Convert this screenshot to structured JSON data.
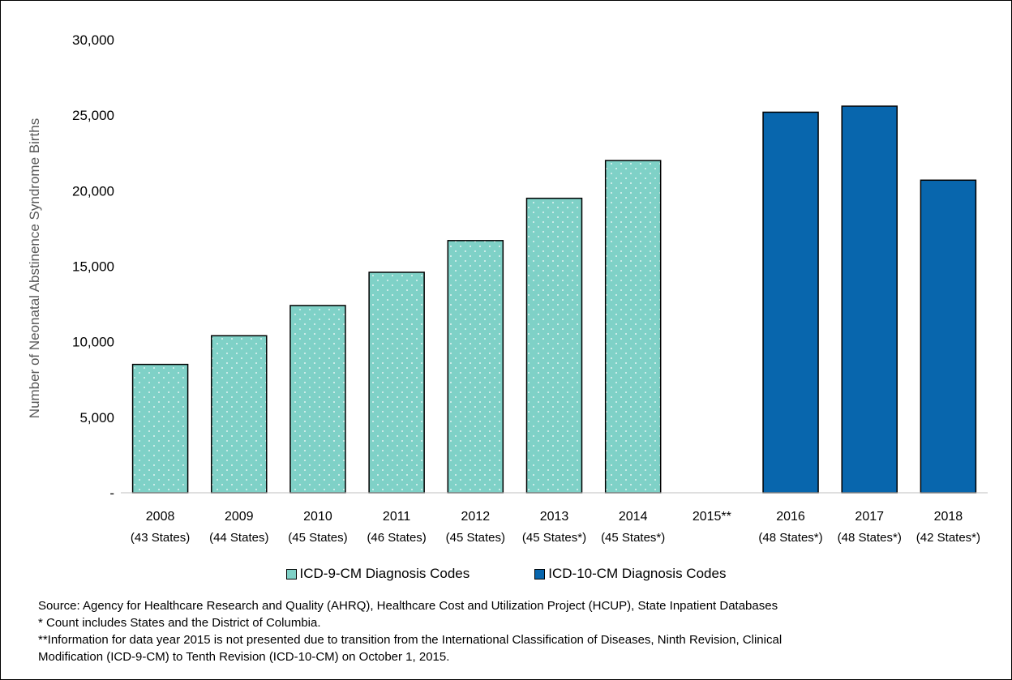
{
  "chart_data": {
    "type": "bar",
    "ylabel": "Number  of Neonatal Abstinence Syndrome Births",
    "ylim": [
      0,
      30000
    ],
    "yticks": [
      {
        "value": 0,
        "label": "-"
      },
      {
        "value": 5000,
        "label": "5,000"
      },
      {
        "value": 10000,
        "label": "10,000"
      },
      {
        "value": 15000,
        "label": "15,000"
      },
      {
        "value": 20000,
        "label": "20,000"
      },
      {
        "value": 25000,
        "label": "25,000"
      },
      {
        "value": 30000,
        "label": "30,000"
      }
    ],
    "categories": [
      {
        "year": "2008",
        "states": "(43 States)"
      },
      {
        "year": "2009",
        "states": "(44 States)"
      },
      {
        "year": "2010",
        "states": "(45 States)"
      },
      {
        "year": "2011",
        "states": "(46 States)"
      },
      {
        "year": "2012",
        "states": "(45 States)"
      },
      {
        "year": "2013",
        "states": "(45 States*)"
      },
      {
        "year": "2014",
        "states": "(45 States*)"
      },
      {
        "year": "2015**",
        "states": ""
      },
      {
        "year": "2016",
        "states": "(48 States*)"
      },
      {
        "year": "2017",
        "states": "(48 States*)"
      },
      {
        "year": "2018",
        "states": "(42 States*)"
      }
    ],
    "series": [
      {
        "name": "ICD-9-CM Diagnosis Codes",
        "color": "#7fd1c7",
        "pattern": "dotted",
        "values": [
          8500,
          10400,
          12400,
          14600,
          16700,
          19500,
          22000,
          null,
          null,
          null,
          null
        ]
      },
      {
        "name": "ICD-10-CM Diagnosis Codes",
        "color": "#0866ad",
        "pattern": "solid",
        "values": [
          null,
          null,
          null,
          null,
          null,
          null,
          null,
          null,
          25200,
          25600,
          20700
        ]
      }
    ],
    "grid": false,
    "legend_position": "bottom"
  },
  "notes": {
    "source": "Source: Agency for Healthcare Research and Quality (AHRQ), Healthcare Cost and Utilization Project (HCUP), State Inpatient Databases",
    "footnote1": "* Count includes States and the District of Columbia.",
    "footnote2_line1": "**Information for data year 2015 is not presented due to transition from the International Classification of Diseases, Ninth Revision, Clinical",
    "footnote2_line2": "Modification (ICD-9-CM) to Tenth Revision (ICD-10-CM) on October 1, 2015."
  }
}
